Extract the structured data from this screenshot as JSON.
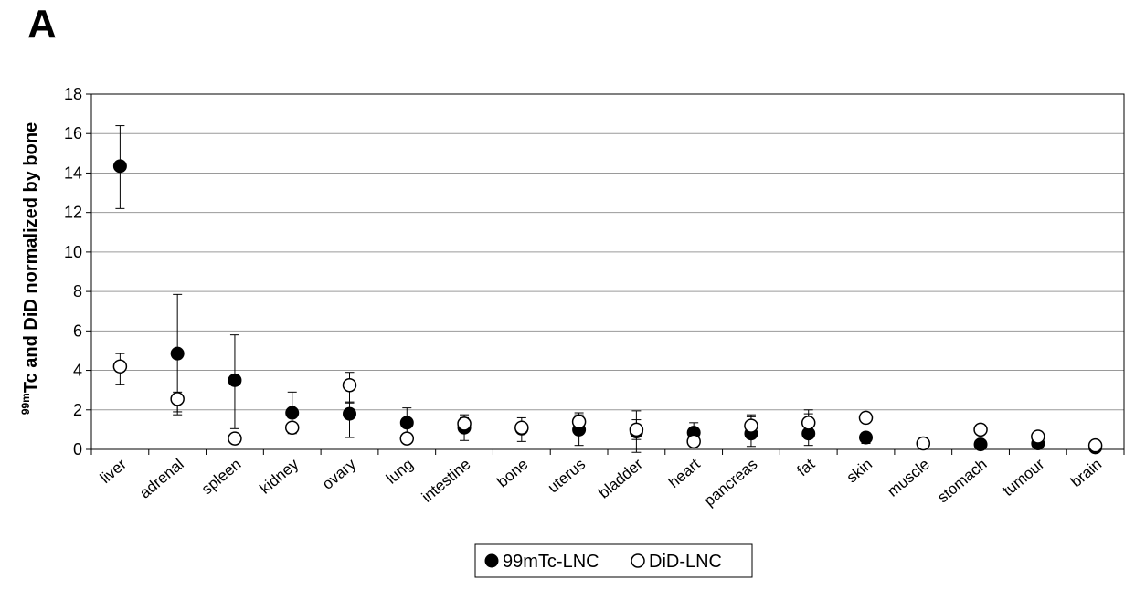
{
  "panel_label": "A",
  "chart_data": {
    "type": "scatter",
    "categories": [
      "liver",
      "adrenal",
      "spleen",
      "kidney",
      "ovary",
      "lung",
      "intestine",
      "bone",
      "uterus",
      "bladder",
      "heart",
      "pancreas",
      "fat",
      "skin",
      "muscle",
      "stomach",
      "tumour",
      "brain"
    ],
    "ylabel_sup": "99m",
    "ylabel_main": "Tc and DiD normalized by bone",
    "ylim": [
      0,
      18
    ],
    "yticks": [
      0,
      2,
      4,
      6,
      8,
      10,
      12,
      14,
      16,
      18
    ],
    "grid": true,
    "legend_position": "bottom-center",
    "series": [
      {
        "name": "99mTc-LNC",
        "marker": "filled-circle",
        "color": "#000000",
        "values": [
          14.35,
          4.85,
          3.5,
          1.85,
          1.8,
          1.35,
          1.1,
          1.05,
          1.0,
          0.9,
          0.85,
          0.8,
          0.8,
          0.6,
          0.3,
          0.25,
          0.3,
          0.1
        ],
        "err_upper": [
          16.4,
          7.85,
          5.8,
          2.9,
          2.4,
          2.1,
          1.75,
          1.6,
          1.85,
          1.95,
          1.35,
          1.75,
          2.0,
          0.85,
          0.45,
          0.35,
          0.45,
          0.15
        ],
        "err_lower": [
          12.2,
          1.9,
          1.05,
          0.8,
          0.6,
          0.6,
          0.45,
          0.4,
          0.2,
          -0.15,
          0.35,
          0.15,
          0.2,
          0.3,
          0.15,
          0.15,
          0.15,
          0.05
        ]
      },
      {
        "name": "DiD-LNC",
        "marker": "open-circle",
        "color": "#000000",
        "values": [
          4.2,
          2.55,
          0.55,
          1.1,
          3.25,
          0.55,
          1.3,
          1.1,
          1.4,
          1.0,
          0.4,
          1.2,
          1.35,
          1.6,
          0.3,
          1.0,
          0.65,
          0.2
        ],
        "err_upper": [
          4.85,
          2.9,
          0.6,
          1.2,
          3.9,
          0.6,
          1.6,
          1.3,
          1.75,
          1.5,
          0.5,
          1.65,
          1.8,
          1.8,
          0.4,
          1.1,
          0.75,
          0.3
        ],
        "err_lower": [
          3.3,
          1.75,
          0.45,
          1.0,
          2.35,
          0.5,
          1.0,
          0.9,
          0.95,
          0.5,
          0.3,
          0.75,
          0.9,
          1.4,
          0.2,
          0.9,
          0.55,
          0.1
        ]
      }
    ]
  }
}
